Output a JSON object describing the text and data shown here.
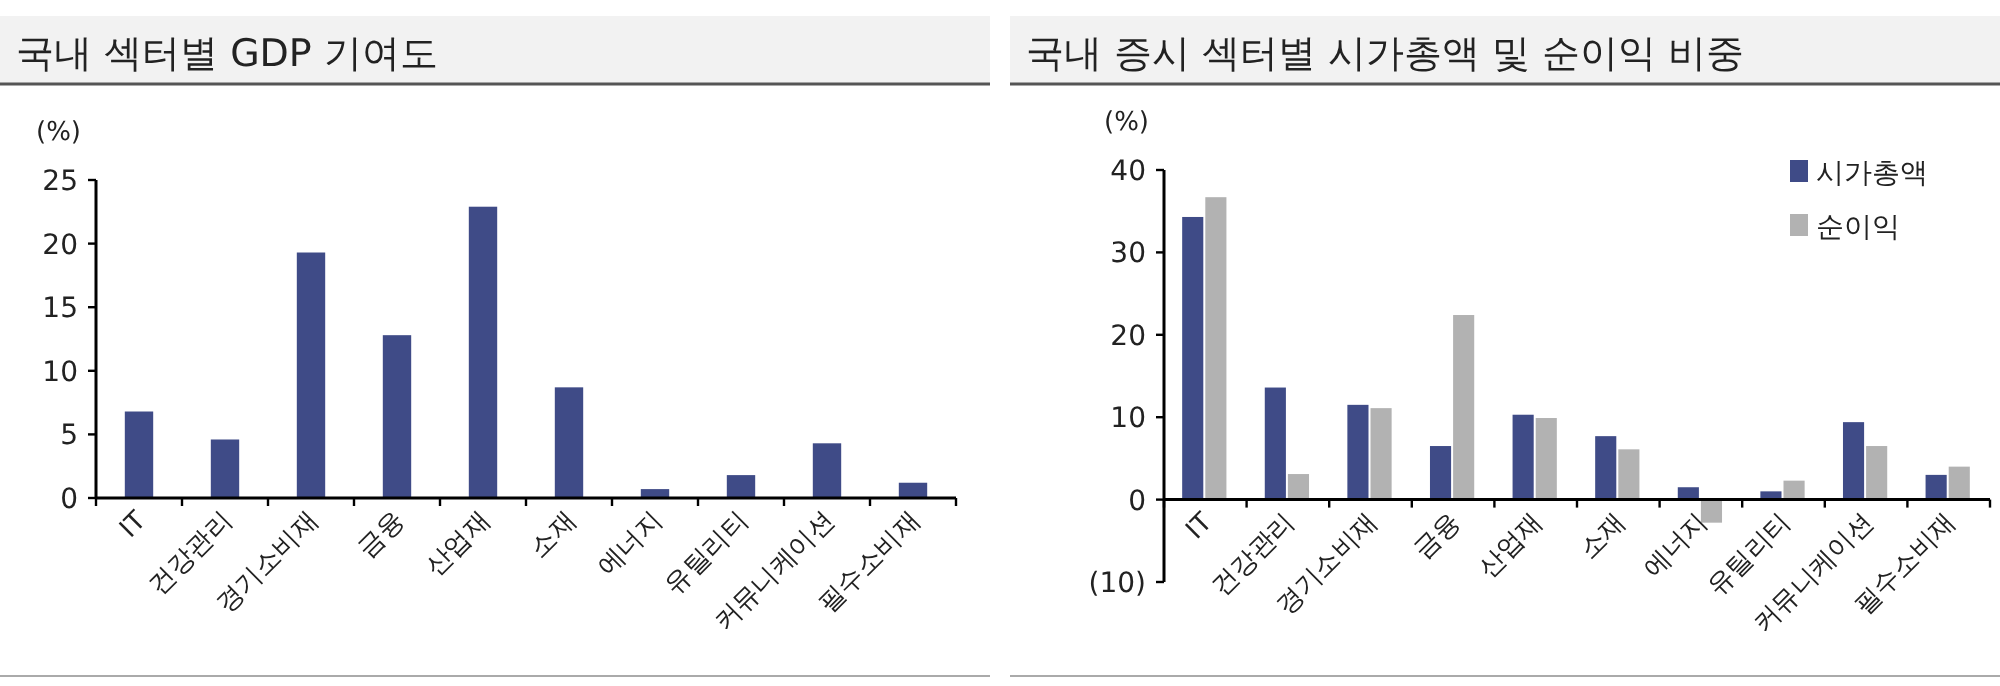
{
  "chart_data": [
    {
      "type": "bar",
      "title": "국내 섹터별 GDP 기여도",
      "ylabel": "(%)",
      "categories": [
        "IT",
        "건강관리",
        "경기소비재",
        "금융",
        "산업재",
        "소재",
        "에너지",
        "유틸리티",
        "커뮤니케이션",
        "필수소비재"
      ],
      "series": [
        {
          "color": "#3f4b87",
          "values": [
            6.8,
            4.6,
            19.3,
            12.8,
            22.9,
            8.7,
            0.7,
            1.8,
            4.3,
            1.2
          ]
        }
      ],
      "ylim": [
        0,
        25
      ],
      "yticks": [
        0,
        5,
        10,
        15,
        20,
        25
      ],
      "legend": false
    },
    {
      "type": "bar",
      "title": "국내 증시 섹터별 시가총액 및 순이익 비중",
      "ylabel": "(%)",
      "categories": [
        "IT",
        "건강관리",
        "경기소비재",
        "금융",
        "산업재",
        "소재",
        "에너지",
        "유틸리티",
        "커뮤니케이션",
        "필수소비재"
      ],
      "series": [
        {
          "name": "시가총액",
          "color": "#3f4b87",
          "values": [
            34.3,
            13.6,
            11.5,
            6.5,
            10.3,
            7.7,
            1.5,
            1.0,
            9.4,
            3.0
          ]
        },
        {
          "name": "순이익",
          "color": "#b2b2b2",
          "values": [
            36.7,
            3.1,
            11.1,
            22.4,
            9.9,
            6.1,
            -2.8,
            2.3,
            6.5,
            4.0
          ]
        }
      ],
      "ylim": [
        -10,
        40
      ],
      "yticks": [
        {
          "value": -10,
          "label": "(10)"
        },
        0,
        10,
        20,
        30,
        40
      ],
      "legend": "top right"
    }
  ]
}
